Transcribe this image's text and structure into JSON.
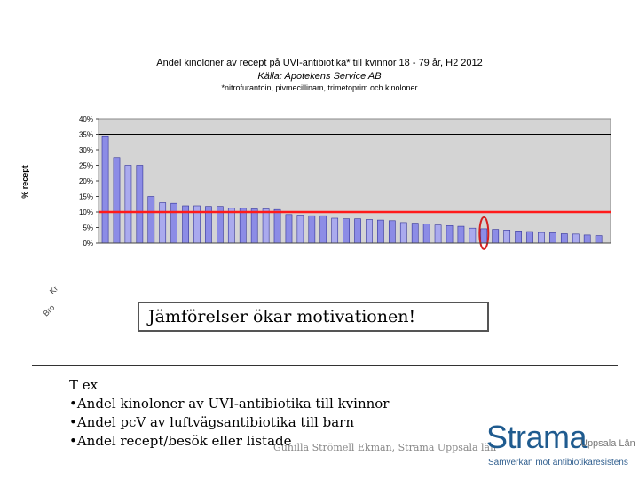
{
  "chart_data": {
    "type": "bar",
    "title": "Andel kinoloner av recept på UVI-antibiotika* till kvinnor 18 - 79 år, H2 2012",
    "subtitle": "Källa: Apotekens Service AB",
    "footnote": "*nitrofurantoin, pivmecillinam, trimetoprim och kinoloner",
    "ylabel": "% recept",
    "ylim": [
      0,
      40
    ],
    "yticks": [
      "0%",
      "5%",
      "10%",
      "15%",
      "20%",
      "25%",
      "30%",
      "35%",
      "40%"
    ],
    "reference_lines": [
      35,
      10
    ],
    "grid": false,
    "values": [
      34.5,
      27.5,
      25,
      25,
      15,
      13,
      12.8,
      12,
      12,
      11.8,
      11.8,
      11.2,
      11.2,
      11,
      11,
      10.8,
      9.2,
      9,
      8.8,
      8.8,
      8,
      7.8,
      7.8,
      7.6,
      7.4,
      7.2,
      6.6,
      6.4,
      6.2,
      5.8,
      5.6,
      5.4,
      4.8,
      4.6,
      4.4,
      4.2,
      3.9,
      3.7,
      3.4,
      3.3,
      3.0,
      2.9,
      2.6,
      2.4
    ],
    "highlight_index": 33,
    "colors": {
      "bar_a": "#8c8ce6",
      "bar_b": "#aaaaee",
      "bar_edge": "#333399",
      "plot_bg": "#d4d4d4",
      "red_line": "#ff1a1a",
      "highlight": "#d42020"
    }
  },
  "faded_text": [
    "Kr",
    "Bro"
  ],
  "callout": "Jämförelser ökar motivationen!",
  "bullets": {
    "heading": "T ex",
    "items": [
      "•Andel kinoloner av UVI-antibiotika till kvinnor",
      "•Andel pcV av luftvägsantibiotika till barn",
      "•Andel recept/besök eller listade"
    ]
  },
  "author": "Gunilla Strömell Ekman, Strama Uppsala län",
  "logo": {
    "word": "Strama",
    "lan": "Uppsala Län",
    "tagline": "Samverkan mot antibiotikaresistens",
    "color": "#1f5b8f"
  }
}
